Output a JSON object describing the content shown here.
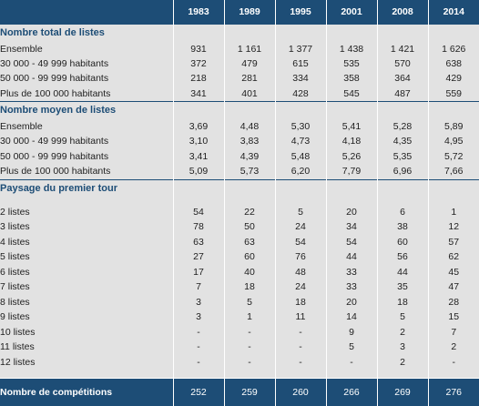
{
  "years": [
    "1983",
    "1989",
    "1995",
    "2001",
    "2008",
    "2014"
  ],
  "sections": [
    {
      "title": "Nombre total de listes",
      "rows": [
        {
          "label": "Ensemble",
          "values": [
            "931",
            "1 161",
            "1 377",
            "1 438",
            "1 421",
            "1 626"
          ]
        },
        {
          "label": "30 000 - 49 999 habitants",
          "values": [
            "372",
            "479",
            "615",
            "535",
            "570",
            "638"
          ]
        },
        {
          "label": "50 000 - 99 999 habitants",
          "values": [
            "218",
            "281",
            "334",
            "358",
            "364",
            "429"
          ]
        },
        {
          "label": "Plus de 100 000 habitants",
          "values": [
            "341",
            "401",
            "428",
            "545",
            "487",
            "559"
          ]
        }
      ]
    },
    {
      "title": "Nombre moyen de listes",
      "rows": [
        {
          "label": "Ensemble",
          "values": [
            "3,69",
            "4,48",
            "5,30",
            "5,41",
            "5,28",
            "5,89"
          ]
        },
        {
          "label": "30 000 - 49 999 habitants",
          "values": [
            "3,10",
            "3,83",
            "4,73",
            "4,18",
            "4,35",
            "4,95"
          ]
        },
        {
          "label": "50 000 - 99 999 habitants",
          "values": [
            "3,41",
            "4,39",
            "5,48",
            "5,26",
            "5,35",
            "5,72"
          ]
        },
        {
          "label": "Plus de 100 000 habitants",
          "values": [
            "5,09",
            "5,73",
            "6,20",
            "7,79",
            "6,96",
            "7,66"
          ]
        }
      ]
    },
    {
      "title": "Paysage du premier tour",
      "rows": [
        {
          "label": "2 listes",
          "values": [
            "54",
            "22",
            "5",
            "20",
            "6",
            "1"
          ]
        },
        {
          "label": "3 listes",
          "values": [
            "78",
            "50",
            "24",
            "34",
            "38",
            "12"
          ]
        },
        {
          "label": "4 listes",
          "values": [
            "63",
            "63",
            "54",
            "54",
            "60",
            "57"
          ]
        },
        {
          "label": "5 listes",
          "values": [
            "27",
            "60",
            "76",
            "44",
            "56",
            "62"
          ]
        },
        {
          "label": "6 listes",
          "values": [
            "17",
            "40",
            "48",
            "33",
            "44",
            "45"
          ]
        },
        {
          "label": "7 listes",
          "values": [
            "7",
            "18",
            "24",
            "33",
            "35",
            "47"
          ]
        },
        {
          "label": "8 listes",
          "values": [
            "3",
            "5",
            "18",
            "20",
            "18",
            "28"
          ]
        },
        {
          "label": "9 listes",
          "values": [
            "3",
            "1",
            "11",
            "14",
            "5",
            "15"
          ]
        },
        {
          "label": "10 listes",
          "values": [
            "-",
            "-",
            "-",
            "9",
            "2",
            "7"
          ]
        },
        {
          "label": "11 listes",
          "values": [
            "-",
            "-",
            "-",
            "5",
            "3",
            "2"
          ]
        },
        {
          "label": "12 listes",
          "values": [
            "-",
            "-",
            "-",
            "-",
            "2",
            "-"
          ]
        }
      ]
    }
  ],
  "footer": {
    "label": "Nombre de compétitions",
    "values": [
      "252",
      "259",
      "260",
      "266",
      "269",
      "276"
    ]
  }
}
